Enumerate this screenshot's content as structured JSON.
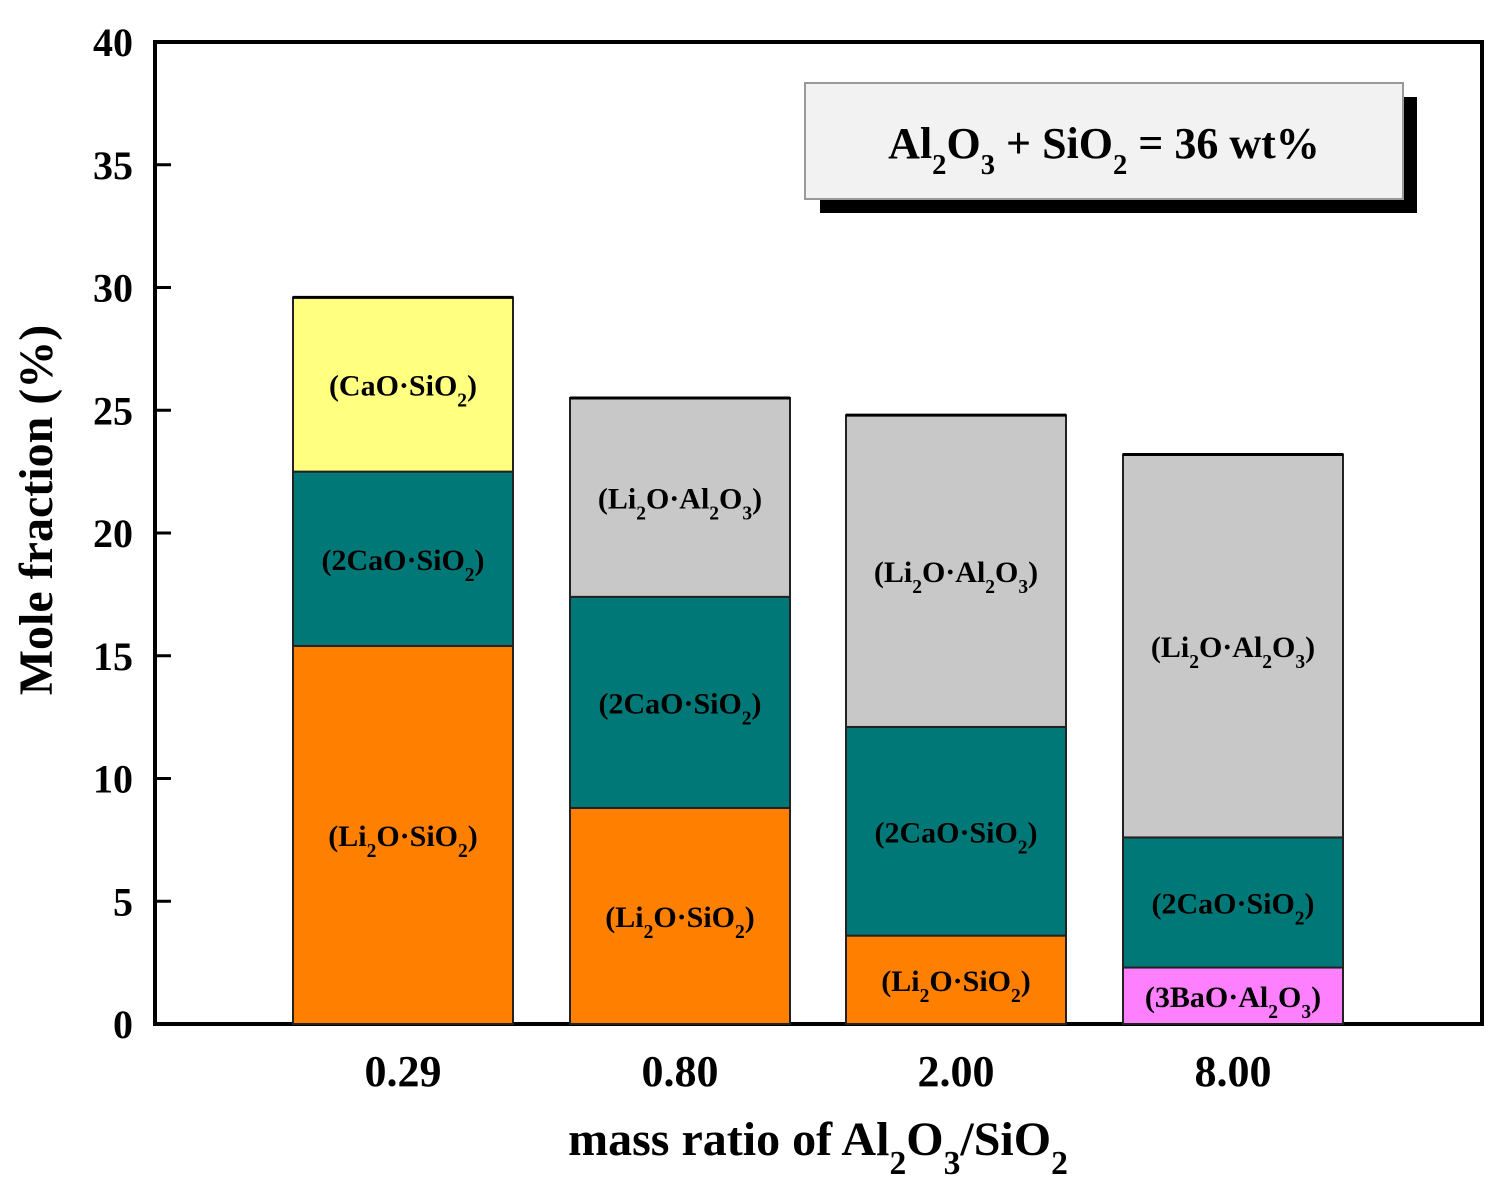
{
  "chart_data": {
    "type": "bar",
    "stacked": true,
    "title": "",
    "xlabel": "mass ratio of Al2O3/SiO2",
    "ylabel": "Mole fraction (%)",
    "ylim": [
      0,
      40
    ],
    "yticks": [
      0,
      5,
      10,
      15,
      20,
      25,
      30,
      35,
      40
    ],
    "grid": false,
    "legend": "none",
    "annotation": "Al2O3 + SiO2 = 36 wt%",
    "categories": [
      "0.29",
      "0.80",
      "2.00",
      "8.00"
    ],
    "bars": [
      {
        "category": "0.29",
        "segments": [
          {
            "name": "Li2O·SiO2",
            "label": "(Li2O·SiO2)",
            "value": 15.4,
            "color": "#ff8000"
          },
          {
            "name": "2CaO·SiO2",
            "label": "(2CaO·SiO2)",
            "value": 7.1,
            "color": "#007878"
          },
          {
            "name": "CaO·SiO2",
            "label": "(CaO·SiO2)",
            "value": 7.1,
            "color": "#ffff80"
          }
        ]
      },
      {
        "category": "0.80",
        "segments": [
          {
            "name": "Li2O·SiO2",
            "label": "(Li2O·SiO2)",
            "value": 8.8,
            "color": "#ff8000"
          },
          {
            "name": "2CaO·SiO2",
            "label": "(2CaO·SiO2)",
            "value": 8.6,
            "color": "#007878"
          },
          {
            "name": "Li2O·Al2O3",
            "label": "(Li2O·Al2O3)",
            "value": 8.1,
            "color": "#c8c8c8"
          }
        ]
      },
      {
        "category": "2.00",
        "segments": [
          {
            "name": "Li2O·SiO2",
            "label": "(Li2O·SiO2)",
            "value": 3.6,
            "color": "#ff8000"
          },
          {
            "name": "2CaO·SiO2",
            "label": "(2CaO·SiO2)",
            "value": 8.5,
            "color": "#007878"
          },
          {
            "name": "Li2O·Al2O3",
            "label": "(Li2O·Al2O3)",
            "value": 12.7,
            "color": "#c8c8c8"
          }
        ]
      },
      {
        "category": "8.00",
        "segments": [
          {
            "name": "3BaO·Al2O3",
            "label": "(3BaO·Al2O3)",
            "value": 2.3,
            "color": "#ff80ff"
          },
          {
            "name": "2CaO·SiO2",
            "label": "(2CaO·SiO2)",
            "value": 5.3,
            "color": "#007878"
          },
          {
            "name": "Li2O·Al2O3",
            "label": "(Li2O·Al2O3)",
            "value": 15.6,
            "color": "#c8c8c8"
          }
        ]
      }
    ]
  }
}
